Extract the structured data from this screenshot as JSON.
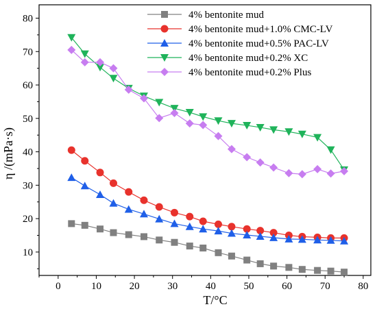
{
  "chart_data": {
    "type": "line",
    "title": "",
    "xlabel": "T/°C",
    "ylabel": "η /(mPa·s)",
    "xlim": [
      -5,
      82
    ],
    "ylim": [
      3,
      84
    ],
    "xticks": [
      0,
      10,
      20,
      30,
      40,
      50,
      60,
      70,
      80
    ],
    "yticks": [
      10,
      20,
      30,
      40,
      50,
      60,
      70,
      80
    ],
    "grid": false,
    "legend_position": "top-right",
    "series": [
      {
        "name": "4% bentonite mud",
        "color": "#808080",
        "marker": "square",
        "x": [
          3.5,
          7,
          11,
          14.5,
          18.5,
          22.5,
          26.5,
          30.5,
          34.5,
          38,
          42,
          45.5,
          49.5,
          53,
          56.5,
          60.5,
          64,
          68,
          71.5,
          75
        ],
        "y": [
          18.5,
          18,
          16.9,
          15.8,
          15.2,
          14.6,
          13.6,
          12.9,
          11.8,
          11.2,
          9.8,
          8.8,
          7.6,
          6.5,
          5.8,
          5.4,
          4.8,
          4.5,
          4.3,
          4.0
        ]
      },
      {
        "name": "4% bentonite mud+1.0% CMC-LV",
        "color": "#e8322c",
        "marker": "circle",
        "x": [
          3.5,
          7,
          11,
          14.5,
          18.5,
          22.5,
          26.5,
          30.5,
          34.5,
          38,
          42,
          45.5,
          49.5,
          53,
          56.5,
          60.5,
          64,
          68,
          71.5,
          75
        ],
        "y": [
          40.5,
          37.3,
          33.8,
          30.6,
          28.0,
          25.5,
          23.5,
          21.8,
          20.6,
          19.2,
          18.3,
          17.6,
          16.9,
          16.4,
          15.8,
          15.0,
          14.6,
          14.4,
          14.2,
          14.2
        ]
      },
      {
        "name": "4% bentonite mud+0.5% PAC-LV",
        "color": "#1f5fe8",
        "marker": "triangle-up",
        "x": [
          3.5,
          7,
          11,
          14.5,
          18.5,
          22.5,
          26.5,
          30.5,
          34.5,
          38,
          42,
          45.5,
          49.5,
          53,
          56.5,
          60.5,
          64,
          68,
          71.5,
          75
        ],
        "y": [
          32.3,
          29.8,
          27.2,
          24.6,
          22.8,
          21.4,
          19.9,
          18.5,
          17.6,
          16.9,
          16.3,
          15.6,
          15.1,
          14.7,
          14.3,
          13.9,
          13.8,
          13.6,
          13.5,
          13.3
        ]
      },
      {
        "name": "4% bentonite mud+0.2% XC",
        "color": "#1fb35a",
        "marker": "triangle-down",
        "x": [
          3.5,
          7,
          11,
          14.5,
          18.5,
          22.5,
          26.5,
          30.5,
          34.5,
          38,
          42,
          45.5,
          49.5,
          53,
          56.5,
          60.5,
          64,
          68,
          71.5,
          75
        ],
        "y": [
          74.2,
          69.3,
          65.3,
          62.0,
          59.0,
          56.7,
          54.8,
          53.0,
          51.8,
          50.5,
          49.3,
          48.5,
          47.9,
          47.3,
          46.6,
          46.0,
          45.3,
          44.3,
          40.6,
          34.6
        ]
      },
      {
        "name": "4% bentonite mud+0.2% Plus",
        "color": "#c77df0",
        "marker": "diamond",
        "x": [
          3.5,
          7,
          11,
          14.5,
          18.5,
          22.5,
          26.5,
          30.5,
          34.5,
          38,
          42,
          45.5,
          49.5,
          53,
          56.5,
          60.5,
          64,
          68,
          71.5,
          75
        ],
        "y": [
          70.5,
          66.8,
          66.8,
          65.0,
          58.6,
          56.0,
          50.1,
          51.6,
          48.5,
          48.0,
          44.7,
          40.8,
          38.4,
          36.8,
          35.3,
          33.6,
          33.3,
          34.8,
          33.5,
          34.2
        ]
      }
    ]
  }
}
